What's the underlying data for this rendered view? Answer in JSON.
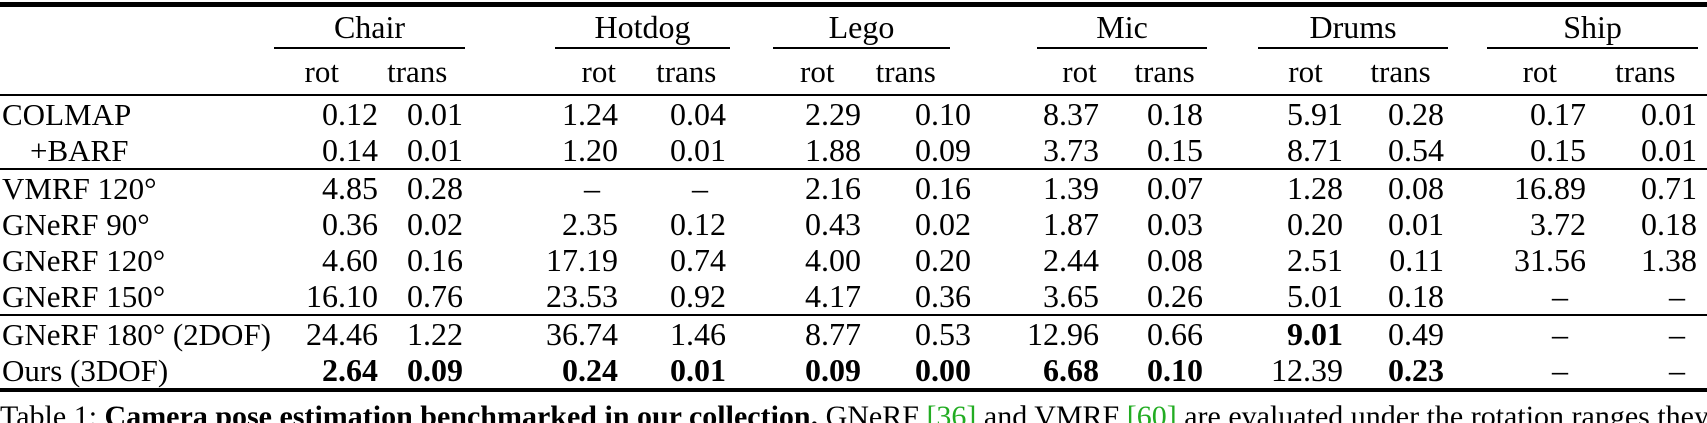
{
  "page": {
    "background": "#ffffff"
  },
  "colors": {
    "text": "#000000",
    "rules": "#000000",
    "citation_green": "#22ac22"
  },
  "table": {
    "scene_groups": [
      "Chair",
      "Hotdog",
      "Lego",
      "Mic",
      "Drums",
      "Ship"
    ],
    "metric_headers": [
      "rot",
      "trans"
    ],
    "rows": [
      {
        "label": "COLMAP",
        "indent": false,
        "rule_above": false,
        "cells": [
          "0.12",
          "0.01",
          "1.24",
          "0.04",
          "2.29",
          "0.10",
          "8.37",
          "0.18",
          "5.91",
          "0.28",
          "0.17",
          "0.01"
        ],
        "bold": []
      },
      {
        "label": "+BARF",
        "indent": true,
        "rule_above": false,
        "cells": [
          "0.14",
          "0.01",
          "1.20",
          "0.01",
          "1.88",
          "0.09",
          "3.73",
          "0.15",
          "8.71",
          "0.54",
          "0.15",
          "0.01"
        ],
        "bold": []
      },
      {
        "label": "VMRF 120°",
        "indent": false,
        "rule_above": true,
        "cells": [
          "4.85",
          "0.28",
          "–",
          "–",
          "2.16",
          "0.16",
          "1.39",
          "0.07",
          "1.28",
          "0.08",
          "16.89",
          "0.71"
        ],
        "bold": []
      },
      {
        "label": "GNeRF 90°",
        "indent": false,
        "rule_above": false,
        "cells": [
          "0.36",
          "0.02",
          "2.35",
          "0.12",
          "0.43",
          "0.02",
          "1.87",
          "0.03",
          "0.20",
          "0.01",
          "3.72",
          "0.18"
        ],
        "bold": []
      },
      {
        "label": "GNeRF 120°",
        "indent": false,
        "rule_above": false,
        "cells": [
          "4.60",
          "0.16",
          "17.19",
          "0.74",
          "4.00",
          "0.20",
          "2.44",
          "0.08",
          "2.51",
          "0.11",
          "31.56",
          "1.38"
        ],
        "bold": []
      },
      {
        "label": "GNeRF 150°",
        "indent": false,
        "rule_above": false,
        "cells": [
          "16.10",
          "0.76",
          "23.53",
          "0.92",
          "4.17",
          "0.36",
          "3.65",
          "0.26",
          "5.01",
          "0.18",
          "–",
          "–"
        ],
        "bold": []
      },
      {
        "label": "GNeRF 180° (2DOF)",
        "indent": false,
        "rule_above": true,
        "cells": [
          "24.46",
          "1.22",
          "36.74",
          "1.46",
          "8.77",
          "0.53",
          "12.96",
          "0.66",
          "9.01",
          "0.49",
          "–",
          "–"
        ],
        "bold": [
          8
        ]
      },
      {
        "label": "Ours (3DOF)",
        "indent": false,
        "rule_above": false,
        "cells": [
          "2.64",
          "0.09",
          "0.24",
          "0.01",
          "0.09",
          "0.00",
          "6.68",
          "0.10",
          "12.39",
          "0.23",
          "–",
          "–"
        ],
        "bold": [
          0,
          1,
          2,
          3,
          4,
          5,
          6,
          7,
          9
        ]
      }
    ]
  },
  "caption": {
    "prefix": "Table 1: ",
    "bold_text": "Camera pose estimation benchmarked in our collection.",
    "seg_1": " GNeRF ",
    "cite_1": "[36]",
    "seg_2": " and VMRF ",
    "cite_2": "[60]",
    "seg_3": " are evaluated under the rotation ranges they were designed for; dashes denote runs that failed to converge."
  }
}
